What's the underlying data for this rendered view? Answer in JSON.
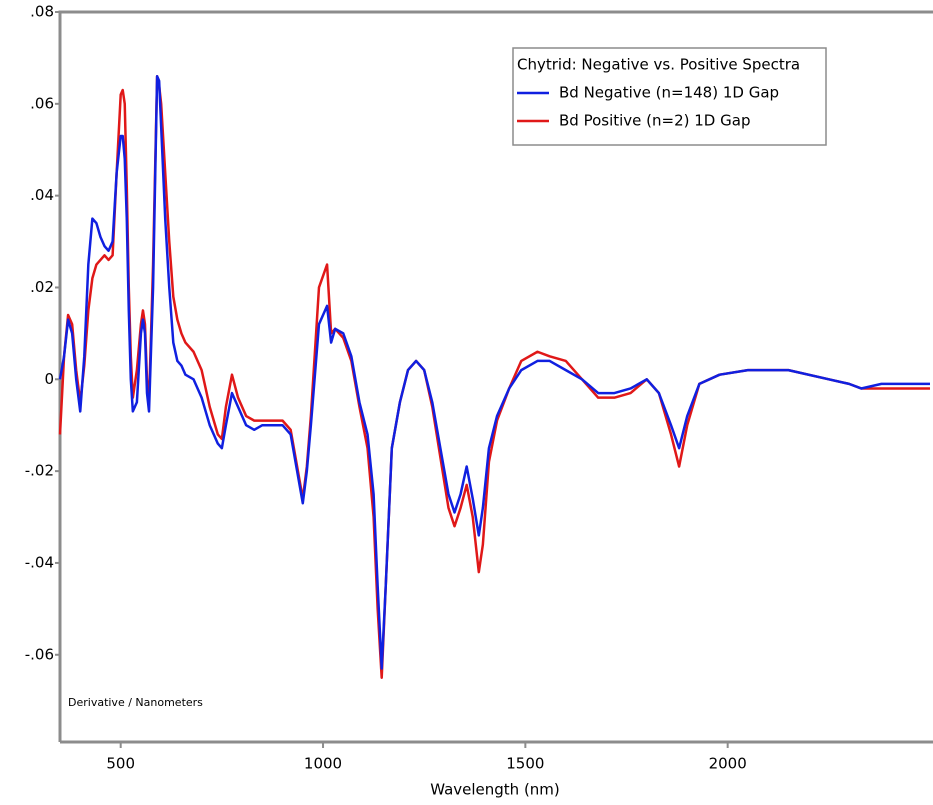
{
  "chart_data": {
    "type": "line",
    "legend_title": "Chytrid: Negative vs. Positive Spectra",
    "annotation": "Derivative / Nanometers",
    "xlabel": "Wavelength (nm)",
    "legend": "upper right",
    "x": [
      350,
      360,
      370,
      380,
      390,
      400,
      410,
      420,
      430,
      440,
      450,
      460,
      470,
      480,
      490,
      500,
      505,
      510,
      515,
      520,
      525,
      530,
      540,
      550,
      555,
      560,
      565,
      570,
      580,
      590,
      595,
      600,
      610,
      620,
      630,
      640,
      650,
      660,
      680,
      700,
      720,
      740,
      750,
      760,
      775,
      790,
      810,
      830,
      850,
      870,
      900,
      920,
      940,
      950,
      960,
      970,
      990,
      1010,
      1020,
      1030,
      1050,
      1070,
      1090,
      1110,
      1125,
      1135,
      1145,
      1155,
      1170,
      1190,
      1210,
      1230,
      1250,
      1270,
      1290,
      1310,
      1325,
      1340,
      1355,
      1370,
      1385,
      1395,
      1410,
      1430,
      1460,
      1490,
      1530,
      1560,
      1600,
      1640,
      1680,
      1720,
      1760,
      1800,
      1830,
      1860,
      1880,
      1900,
      1930,
      1980,
      2050,
      2150,
      2250,
      2300,
      2330,
      2380,
      2450,
      2500
    ],
    "series": [
      {
        "name": "Bd Negative (n=148) 1D Gap",
        "color": "#1020e0",
        "values": [
          0.0,
          0.005,
          0.013,
          0.01,
          0.0,
          -0.007,
          0.005,
          0.025,
          0.035,
          0.034,
          0.031,
          0.029,
          0.028,
          0.03,
          0.045,
          0.053,
          0.053,
          0.048,
          0.035,
          0.015,
          0.0,
          -0.007,
          -0.005,
          0.01,
          0.013,
          0.01,
          -0.003,
          -0.007,
          0.02,
          0.066,
          0.065,
          0.055,
          0.035,
          0.02,
          0.008,
          0.004,
          0.003,
          0.001,
          0.0,
          -0.004,
          -0.01,
          -0.014,
          -0.015,
          -0.01,
          -0.003,
          -0.006,
          -0.01,
          -0.011,
          -0.01,
          -0.01,
          -0.01,
          -0.012,
          -0.022,
          -0.027,
          -0.02,
          -0.01,
          0.012,
          0.016,
          0.008,
          0.011,
          0.01,
          0.005,
          -0.005,
          -0.012,
          -0.025,
          -0.045,
          -0.063,
          -0.045,
          -0.015,
          -0.005,
          0.002,
          0.004,
          0.002,
          -0.005,
          -0.015,
          -0.025,
          -0.029,
          -0.025,
          -0.019,
          -0.026,
          -0.034,
          -0.028,
          -0.015,
          -0.008,
          -0.002,
          0.002,
          0.004,
          0.004,
          0.002,
          0.0,
          -0.003,
          -0.003,
          -0.002,
          0.0,
          -0.003,
          -0.01,
          -0.015,
          -0.008,
          -0.001,
          0.001,
          0.002,
          0.002,
          0.0,
          -0.001,
          -0.002,
          -0.001,
          -0.001,
          -0.001
        ]
      },
      {
        "name": "Bd Positive (n=2) 1D Gap",
        "color": "#e01818",
        "values": [
          -0.012,
          0.005,
          0.014,
          0.012,
          0.002,
          -0.005,
          0.003,
          0.015,
          0.022,
          0.025,
          0.026,
          0.027,
          0.026,
          0.027,
          0.045,
          0.062,
          0.063,
          0.06,
          0.042,
          0.02,
          0.005,
          -0.004,
          0.002,
          0.012,
          0.015,
          0.012,
          0.0,
          -0.005,
          0.025,
          0.066,
          0.064,
          0.06,
          0.045,
          0.03,
          0.018,
          0.013,
          0.01,
          0.008,
          0.006,
          0.002,
          -0.006,
          -0.012,
          -0.013,
          -0.006,
          0.001,
          -0.004,
          -0.008,
          -0.009,
          -0.009,
          -0.009,
          -0.009,
          -0.011,
          -0.021,
          -0.026,
          -0.019,
          -0.008,
          0.02,
          0.025,
          0.01,
          0.011,
          0.009,
          0.004,
          -0.006,
          -0.015,
          -0.03,
          -0.05,
          -0.065,
          -0.045,
          -0.015,
          -0.005,
          0.002,
          0.004,
          0.002,
          -0.006,
          -0.017,
          -0.028,
          -0.032,
          -0.028,
          -0.023,
          -0.03,
          -0.042,
          -0.036,
          -0.018,
          -0.009,
          -0.002,
          0.004,
          0.006,
          0.005,
          0.004,
          0.0,
          -0.004,
          -0.004,
          -0.003,
          0.0,
          -0.003,
          -0.012,
          -0.019,
          -0.01,
          -0.001,
          0.001,
          0.002,
          0.002,
          0.0,
          -0.001,
          -0.002,
          -0.002,
          -0.002,
          -0.002
        ]
      }
    ],
    "xlim": [
      350,
      2500
    ],
    "xticks": [
      500,
      1000,
      1500,
      2000
    ],
    "ylim": [
      -0.079,
      0.08
    ],
    "yticks": [
      {
        "value": 0.08,
        "label": ".08"
      },
      {
        "value": 0.06,
        "label": ".06"
      },
      {
        "value": 0.04,
        "label": ".04"
      },
      {
        "value": 0.02,
        "label": ".02"
      },
      0,
      {
        "value": -0.02,
        "label": "-.02"
      },
      {
        "value": -0.04,
        "label": "-.04"
      },
      {
        "value": -0.06,
        "label": "-.06"
      }
    ],
    "grid": false
  }
}
